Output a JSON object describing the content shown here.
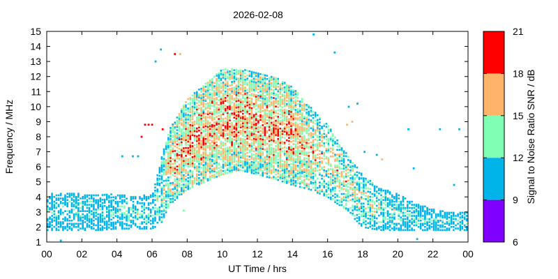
{
  "chart_data": {
    "type": "heatmap",
    "title": "2026-02-08",
    "xlabel": "UT Time / hrs",
    "ylabel": "Frequency / MHz",
    "xlim": [
      0,
      24
    ],
    "ylim": [
      1,
      15
    ],
    "x_ticks": [
      "00",
      "02",
      "04",
      "06",
      "08",
      "10",
      "12",
      "14",
      "16",
      "18",
      "20",
      "22",
      "00"
    ],
    "y_ticks": [
      "1",
      "2",
      "3",
      "4",
      "5",
      "6",
      "7",
      "8",
      "9",
      "10",
      "11",
      "12",
      "13",
      "14",
      "15"
    ],
    "grid": false,
    "colorbar": {
      "label": "Signal to Noise Ratio SNR / dB",
      "ticks": [
        "6",
        "9",
        "12",
        "15",
        "18",
        "21"
      ],
      "range": [
        6,
        21
      ],
      "bands": [
        {
          "from": 6,
          "to": 9,
          "color": "#8000ff"
        },
        {
          "from": 9,
          "to": 12,
          "color": "#00b4ea"
        },
        {
          "from": 12,
          "to": 15,
          "color": "#80ffb4"
        },
        {
          "from": 15,
          "to": 18,
          "color": "#ffb469"
        },
        {
          "from": 18,
          "to": 21,
          "color": "#ff0000"
        }
      ]
    },
    "description_of_pattern": "",
    "envelope": {
      "hours": [
        0,
        1,
        2,
        3,
        4,
        5,
        6,
        6.5,
        7,
        8,
        9,
        10,
        11,
        12,
        13,
        14,
        15,
        16,
        17,
        18,
        19,
        20,
        21,
        22,
        23,
        24
      ],
      "f_low": [
        1.8,
        1.8,
        1.8,
        1.8,
        1.9,
        1.9,
        1.9,
        2.2,
        3.5,
        4.5,
        5.0,
        5.5,
        5.8,
        5.5,
        5.2,
        4.8,
        4.5,
        4.0,
        3.2,
        2.0,
        1.8,
        1.8,
        1.8,
        1.8,
        1.8,
        1.8
      ],
      "f_high": [
        4.3,
        4.3,
        4.2,
        4.2,
        4.2,
        4.0,
        4.2,
        6.5,
        8.5,
        10.5,
        11.5,
        12.5,
        12.5,
        12.3,
        12.0,
        11.3,
        10.0,
        8.8,
        7.0,
        5.5,
        4.6,
        4.2,
        3.6,
        3.2,
        3.0,
        3.0
      ],
      "snr_mid": [
        11,
        11,
        11,
        11,
        11,
        12,
        12,
        13,
        16,
        17,
        17,
        17,
        17,
        17,
        17,
        17,
        16,
        15,
        15,
        14,
        13,
        12,
        12,
        11,
        11,
        11
      ]
    },
    "outliers": [
      {
        "x": 6.2,
        "y": 13.0,
        "snr": 11
      },
      {
        "x": 6.5,
        "y": 13.8,
        "snr": 11
      },
      {
        "x": 7.3,
        "y": 13.5,
        "snr": 20
      },
      {
        "x": 7.6,
        "y": 13.5,
        "snr": 16
      },
      {
        "x": 5.4,
        "y": 8.0,
        "snr": 20
      },
      {
        "x": 5.6,
        "y": 8.8,
        "snr": 20
      },
      {
        "x": 5.8,
        "y": 8.8,
        "snr": 20
      },
      {
        "x": 6.0,
        "y": 8.8,
        "snr": 20
      },
      {
        "x": 6.6,
        "y": 8.5,
        "snr": 20
      },
      {
        "x": 4.3,
        "y": 6.7,
        "snr": 11
      },
      {
        "x": 4.9,
        "y": 6.7,
        "snr": 11
      },
      {
        "x": 5.2,
        "y": 6.7,
        "snr": 11
      },
      {
        "x": 15.2,
        "y": 14.8,
        "snr": 11
      },
      {
        "x": 16.4,
        "y": 13.6,
        "snr": 11
      },
      {
        "x": 17.2,
        "y": 10.0,
        "snr": 11
      },
      {
        "x": 17.7,
        "y": 10.2,
        "snr": 11
      },
      {
        "x": 17.4,
        "y": 9.0,
        "snr": 16
      },
      {
        "x": 17.1,
        "y": 8.8,
        "snr": 16
      },
      {
        "x": 18.1,
        "y": 7.0,
        "snr": 11
      },
      {
        "x": 18.8,
        "y": 6.8,
        "snr": 11
      },
      {
        "x": 19.1,
        "y": 6.5,
        "snr": 16
      },
      {
        "x": 20.6,
        "y": 8.5,
        "snr": 11
      },
      {
        "x": 20.9,
        "y": 5.9,
        "snr": 11
      },
      {
        "x": 22.4,
        "y": 8.5,
        "snr": 11
      },
      {
        "x": 23.5,
        "y": 8.5,
        "snr": 11
      },
      {
        "x": 23.2,
        "y": 4.8,
        "snr": 11
      },
      {
        "x": 21.1,
        "y": 1.2,
        "snr": 11
      },
      {
        "x": 0.8,
        "y": 1.1,
        "snr": 11
      },
      {
        "x": 7.8,
        "y": 3.1,
        "snr": 13
      }
    ]
  }
}
